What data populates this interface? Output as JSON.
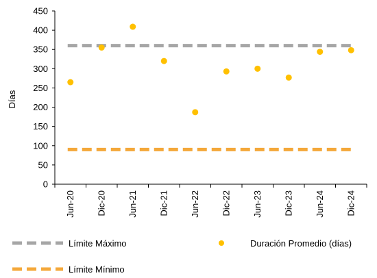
{
  "chart_data": {
    "type": "scatter",
    "categories": [
      "Jun-20",
      "Dic-20",
      "Jun-21",
      "Dic-21",
      "Jun-22",
      "Dic-22",
      "Jun-23",
      "Dic-23",
      "Jun-24",
      "Dic-24"
    ],
    "ylabel": "Días",
    "xlabel": "",
    "ylim": [
      0,
      450
    ],
    "yticks": [
      0,
      50,
      100,
      150,
      200,
      250,
      300,
      350,
      400,
      450
    ],
    "grid": false,
    "legend_position": "bottom",
    "series": [
      {
        "name": "Duración Promedio (días)",
        "kind": "scatter",
        "color": "#FFC000",
        "values": [
          265,
          355,
          409,
          320,
          187,
          293,
          300,
          277,
          344,
          348
        ]
      },
      {
        "name": "Límite Máximo",
        "kind": "dashed-line",
        "color": "#A6A6A6",
        "values": [
          360,
          360,
          360,
          360,
          360,
          360,
          360,
          360,
          360,
          360
        ]
      },
      {
        "name": "Límite Mínimo",
        "kind": "dashed-line",
        "color": "#F4A83A",
        "values": [
          90,
          90,
          90,
          90,
          90,
          90,
          90,
          90,
          90,
          90
        ]
      }
    ]
  }
}
